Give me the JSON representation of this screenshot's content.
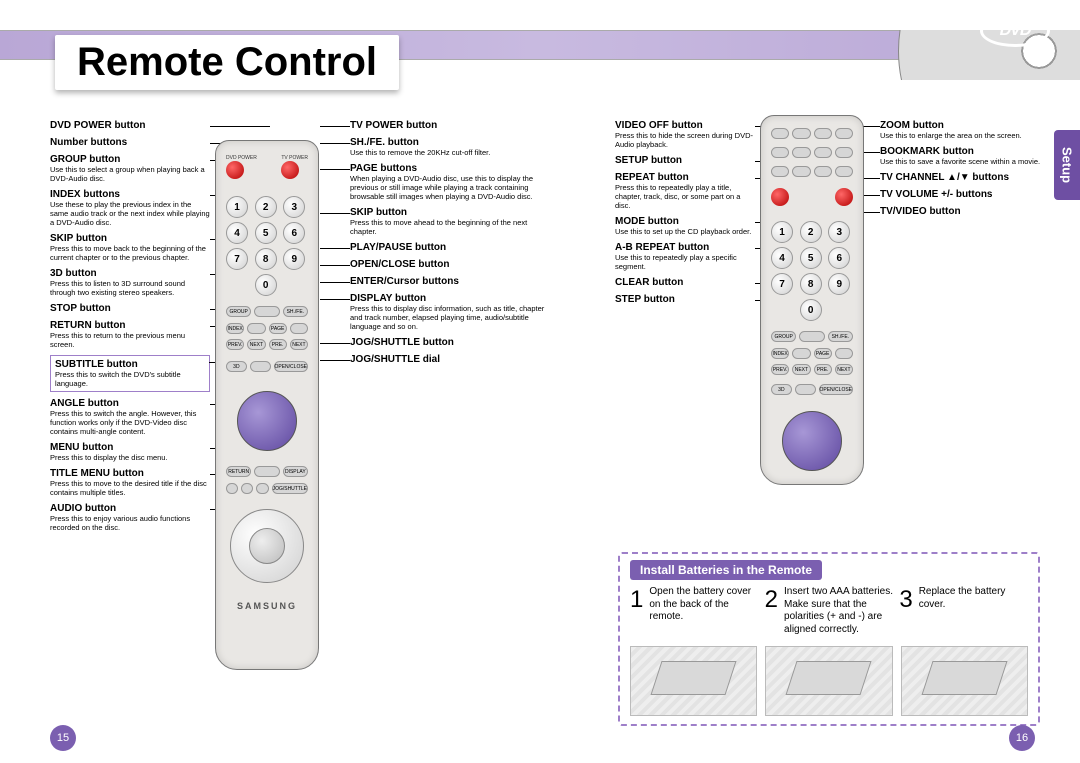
{
  "page_title": "Remote Control",
  "setup_tab": "Setup",
  "page_left": "15",
  "page_right": "16",
  "dvd_logo_text": "DVD",
  "remote_brand": "SAMSUNG",
  "colors": {
    "accent": "#7b5fb0",
    "accent_light": "#9e7fc9",
    "banner": "#b9a7d6"
  },
  "columns": {
    "A": [
      {
        "h": "DVD POWER button",
        "d": ""
      },
      {
        "h": "Number buttons",
        "d": ""
      },
      {
        "h": "GROUP button",
        "d": "Use this to select a group when playing back a DVD-Audio disc."
      },
      {
        "h": "INDEX buttons",
        "d": "Use these to play the previous index in the same audio track or the next index while playing a DVD-Audio disc."
      },
      {
        "h": "SKIP button",
        "d": "Press this to move back to the beginning of the current chapter or to the previous chapter."
      },
      {
        "h": "3D button",
        "d": "Press this to listen to 3D surround sound through two existing stereo speakers."
      },
      {
        "h": "STOP button",
        "d": ""
      },
      {
        "h": "RETURN button",
        "d": "Press this to return to the previous menu screen."
      },
      {
        "h": "SUBTITLE button",
        "d": "Press this to switch the DVD's subtitle language.",
        "boxed": true
      },
      {
        "h": "ANGLE button",
        "d": "Press this to switch the angle. However, this function works only if the DVD-Video disc contains multi-angle content."
      },
      {
        "h": "MENU button",
        "d": "Press this to display the disc menu."
      },
      {
        "h": "TITLE MENU button",
        "d": "Press this to move to the desired title if the disc contains multiple titles."
      },
      {
        "h": "AUDIO button",
        "d": "Press this to enjoy various audio functions recorded on the disc."
      }
    ],
    "B": [
      {
        "h": "TV POWER button",
        "d": ""
      },
      {
        "h": "SH./FE. button",
        "d": "Use this to remove the 20KHz cut-off filter."
      },
      {
        "h": "PAGE buttons",
        "d": "When playing a DVD-Audio disc, use this to display the previous or still image while playing a track containing browsable still images when playing a DVD-Audio disc."
      },
      {
        "h": "SKIP button",
        "d": "Press this to move ahead to the beginning of the next chapter."
      },
      {
        "h": "PLAY/PAUSE button",
        "d": ""
      },
      {
        "h": "OPEN/CLOSE button",
        "d": ""
      },
      {
        "h": "ENTER/Cursor buttons",
        "d": ""
      },
      {
        "h": "DISPLAY button",
        "d": "Press this to display disc information, such as title, chapter and track number, elapsed playing time, audio/subtitle language and so on."
      },
      {
        "h": "JOG/SHUTTLE button",
        "d": ""
      },
      {
        "h": "JOG/SHUTTLE dial",
        "d": ""
      }
    ],
    "C": [
      {
        "h": "VIDEO OFF button",
        "d": "Press this to hide the screen during DVD-Audio playback."
      },
      {
        "h": "SETUP button",
        "d": ""
      },
      {
        "h": "REPEAT button",
        "d": "Press this to repeatedly play a title, chapter, track, disc, or some part on a disc."
      },
      {
        "h": "MODE button",
        "d": "Use this to set up the CD playback order."
      },
      {
        "h": "A-B REPEAT button",
        "d": "Use this to repeatedly play a specific segment."
      },
      {
        "h": "CLEAR button",
        "d": ""
      },
      {
        "h": "STEP button",
        "d": ""
      }
    ],
    "D": [
      {
        "h": "ZOOM button",
        "d": "Use this to enlarge the area on the screen."
      },
      {
        "h": "BOOKMARK button",
        "d": "Use this to save a favorite scene within a movie."
      },
      {
        "h": "TV CHANNEL ▲/▼ buttons",
        "d": ""
      },
      {
        "h": "TV VOLUME +/- buttons",
        "d": ""
      },
      {
        "h": "TV/VIDEO button",
        "d": ""
      }
    ]
  },
  "numbers": [
    "1",
    "2",
    "3",
    "4",
    "5",
    "6",
    "7",
    "8",
    "9",
    "0"
  ],
  "pill_labels": {
    "gp": [
      "GROUP",
      "",
      "SH./FE."
    ],
    "nav1": [
      "INDEX",
      "",
      "PAGE",
      ""
    ],
    "nav2": [
      "PREV.",
      "NEXT",
      "PRE.",
      "NEXT"
    ],
    "threeD": [
      "3D",
      "",
      "OPEN/CLOSE"
    ],
    "ret": [
      "RETURN",
      "",
      "DISPLAY"
    ],
    "ctrl": [
      "",
      "",
      "",
      "JOG/SHUTTLE"
    ],
    "r2a": [
      "",
      "",
      "",
      ""
    ],
    "r2b": [
      "",
      "",
      "",
      ""
    ],
    "r2c": [
      "",
      "",
      "",
      ""
    ]
  },
  "tiny_labels": {
    "dvd": "DVD POWER",
    "tv": "TV POWER"
  },
  "install": {
    "heading": "Install Batteries in the Remote",
    "steps": [
      {
        "n": "1",
        "t": "Open the battery cover on the back of the remote."
      },
      {
        "n": "2",
        "t": "Insert two AAA batteries. Make sure that the polarities (+ and -) are aligned correctly."
      },
      {
        "n": "3",
        "t": "Replace the battery cover."
      }
    ]
  }
}
